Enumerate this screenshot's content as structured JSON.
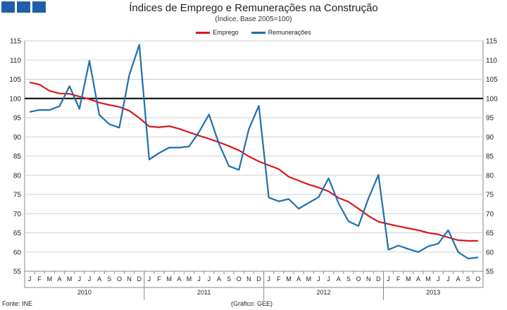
{
  "title": "Índices de Emprego e Remunerações na Construção",
  "subtitle": "(Índice, Base 2005=100)",
  "footer": {
    "source": "Fonte: INE",
    "credit": "(Gráfico: GEE)"
  },
  "colors": {
    "emprego": "#d7191c",
    "remuneracoes": "#1f6fb0",
    "reference": "#000000",
    "logo": "#1f5fa8"
  },
  "chart_data": {
    "type": "line",
    "title": "Índices de Emprego e Remunerações na Construção",
    "subtitle": "(Índice, Base 2005=100)",
    "ylim": [
      55,
      115
    ],
    "yticks": [
      55,
      60,
      65,
      70,
      75,
      80,
      85,
      90,
      95,
      100,
      105,
      110,
      115
    ],
    "reference_line": 100,
    "grid": true,
    "legend": "top-center",
    "month_labels": [
      "J",
      "F",
      "M",
      "A",
      "M",
      "J",
      "J",
      "A",
      "S",
      "O",
      "N",
      "D",
      "J",
      "F",
      "M",
      "A",
      "M",
      "J",
      "J",
      "A",
      "S",
      "O",
      "N",
      "D",
      "J",
      "F",
      "M",
      "A",
      "M",
      "J",
      "J",
      "A",
      "S",
      "O",
      "N",
      "D",
      "J",
      "F",
      "M",
      "A",
      "M",
      "J",
      "J",
      "A",
      "S",
      "O"
    ],
    "years": [
      {
        "label": "2010",
        "months": 12
      },
      {
        "label": "2011",
        "months": 12
      },
      {
        "label": "2012",
        "months": 12
      },
      {
        "label": "2013",
        "months": 10
      }
    ],
    "series": [
      {
        "name": "Emprego",
        "color": "#d7191c",
        "values": [
          104.2,
          103.6,
          102.0,
          101.3,
          101.2,
          100.5,
          99.8,
          98.9,
          98.3,
          97.8,
          96.8,
          94.9,
          92.7,
          92.5,
          92.8,
          92.1,
          91.2,
          90.3,
          89.5,
          88.6,
          87.6,
          86.5,
          84.9,
          83.6,
          82.6,
          81.6,
          79.6,
          78.6,
          77.6,
          76.8,
          75.8,
          74.1,
          73.1,
          71.3,
          69.4,
          67.9,
          67.3,
          66.7,
          66.2,
          65.7,
          65.0,
          64.6,
          63.8,
          63.1,
          62.9,
          62.9
        ]
      },
      {
        "name": "Remunerações",
        "color": "#1f6fb0",
        "values": [
          96.5,
          97.0,
          97.0,
          98.0,
          103.2,
          97.3,
          109.8,
          95.7,
          93.3,
          92.4,
          106.1,
          114.0,
          84.1,
          85.8,
          87.2,
          87.2,
          87.5,
          91.3,
          95.8,
          88.2,
          82.4,
          81.4,
          92.0,
          98.1,
          74.2,
          73.2,
          73.8,
          71.3,
          72.8,
          74.3,
          79.2,
          72.7,
          68.0,
          66.8,
          74.0,
          80.1,
          60.6,
          61.7,
          60.8,
          60.0,
          61.5,
          62.2,
          65.7,
          60.0,
          58.3,
          58.6
        ]
      }
    ]
  }
}
